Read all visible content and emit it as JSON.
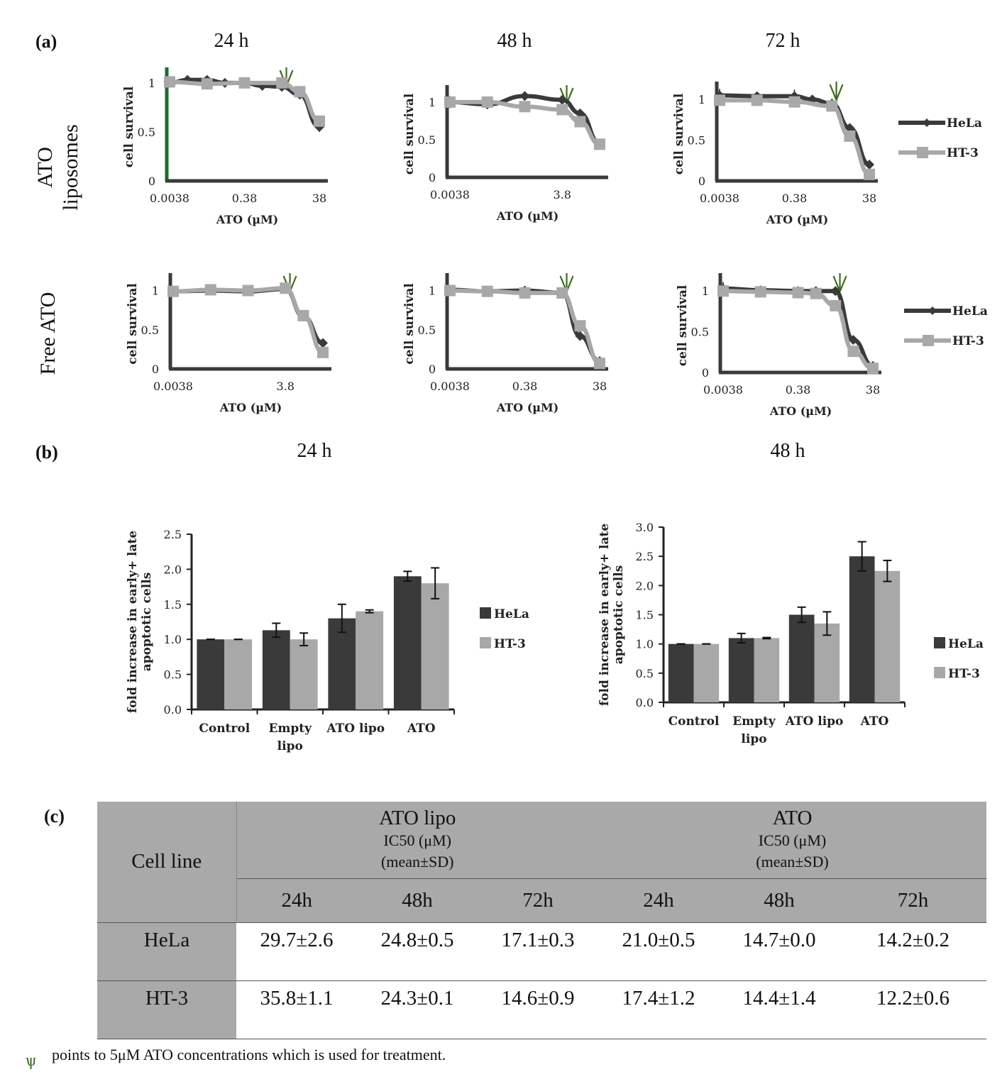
{
  "panels": {
    "a": "(a)",
    "b": "(b)",
    "c": "(c)"
  },
  "colors": {
    "hela": "#3a3a3a",
    "ht3": "#a8a8a8",
    "arrow": "#3d6b1e",
    "axis": "#3a3a3a",
    "table_gray": "#a9a9a9"
  },
  "panel_a": {
    "col_titles": [
      "24 h",
      "48 h",
      "72 h"
    ],
    "row_titles": {
      "liposomes_line1": "ATO",
      "liposomes_line2": "liposomes",
      "free": "Free ATO"
    },
    "legend": [
      "HeLa",
      "HT-3"
    ],
    "arrow_glyph": "ѱ"
  },
  "panel_b": {
    "col_titles": [
      "24 h",
      "48 h"
    ],
    "ylabel_line1": "fold increase in early+ late",
    "ylabel_line2": "apoptotic cells",
    "legend": [
      "HeLa",
      "HT-3"
    ]
  },
  "chart_data": [
    {
      "id": "lipo24",
      "type": "line",
      "title": "24 h",
      "xlabel": "ATO (µM)",
      "ylabel": "cell survival",
      "xscale": "log",
      "xticks": [
        0.0038,
        0.38,
        38
      ],
      "xtick_labels": [
        "0.0038",
        "0.38",
        "38"
      ],
      "xlim": [
        0.0038,
        38
      ],
      "yticks": [
        0,
        0.5,
        1
      ],
      "ytick_labels": [
        "0",
        "0.5",
        "1"
      ],
      "ylim": [
        0,
        1.1
      ],
      "arrow_x": 5,
      "y_axis_color": "#1f6b2e",
      "series": [
        {
          "name": "HeLa",
          "x": [
            0.0038,
            0.0114,
            0.038,
            0.114,
            0.38,
            1.14,
            3.8,
            11.4,
            38
          ],
          "y": [
            1.0,
            1.03,
            1.03,
            1.0,
            1.0,
            0.97,
            0.96,
            0.88,
            0.55
          ],
          "err": [
            0.02,
            0.03,
            0.02,
            0.02,
            0.02,
            0.04,
            0.04,
            0.03,
            0.05
          ]
        },
        {
          "name": "HT-3",
          "x": [
            0.0038,
            0.038,
            0.38,
            3.8,
            11.4,
            38
          ],
          "y": [
            1.01,
            0.99,
            1.0,
            1.0,
            0.91,
            0.61
          ],
          "err": [
            0.02,
            0.02,
            0.02,
            0.02,
            0.03,
            0.03
          ]
        }
      ]
    },
    {
      "id": "lipo48",
      "type": "line",
      "title": "48 h",
      "xlabel": "ATO (µM)",
      "ylabel": "cell survival",
      "xscale": "log",
      "xticks": [
        0.0038,
        3.8
      ],
      "xtick_labels": [
        "0.0038",
        "3.8"
      ],
      "xlim": [
        0.0038,
        38
      ],
      "yticks": [
        0,
        0.5,
        1
      ],
      "ytick_labels": [
        "0",
        "0.5",
        "1"
      ],
      "ylim": [
        0,
        1.15
      ],
      "arrow_x": 5,
      "y_axis_color": "#3a3a3a",
      "series": [
        {
          "name": "HeLa",
          "x": [
            0.0038,
            0.038,
            0.38,
            3.8,
            11.4,
            38
          ],
          "y": [
            1.0,
            0.97,
            1.08,
            1.03,
            0.85,
            0.45
          ],
          "err": [
            0.08,
            0.02,
            0.04,
            0.04,
            0.02,
            0.02
          ]
        },
        {
          "name": "HT-3",
          "x": [
            0.0038,
            0.038,
            0.38,
            3.8,
            11.4,
            38
          ],
          "y": [
            1.0,
            1.0,
            0.94,
            0.9,
            0.74,
            0.44
          ],
          "err": [
            0.02,
            0.02,
            0.02,
            0.02,
            0.03,
            0.02
          ]
        }
      ]
    },
    {
      "id": "lipo72",
      "type": "line",
      "title": "72 h",
      "xlabel": "ATO (µM)",
      "ylabel": "cell survival",
      "xscale": "log",
      "xticks": [
        0.0038,
        0.38,
        38
      ],
      "xtick_labels": [
        "0.0038",
        "0.38",
        "38"
      ],
      "xlim": [
        0.0038,
        38
      ],
      "yticks": [
        0,
        0.5,
        1
      ],
      "ytick_labels": [
        "0",
        "0.5",
        "1"
      ],
      "ylim": [
        0,
        1.15
      ],
      "arrow_x": 5,
      "y_axis_color": "#3a3a3a",
      "series": [
        {
          "name": "HeLa",
          "x": [
            0.0038,
            0.038,
            0.38,
            1.14,
            3.8,
            11.4,
            38
          ],
          "y": [
            1.05,
            1.04,
            1.04,
            1.0,
            0.95,
            0.65,
            0.2
          ],
          "err": [
            0.08,
            0.02,
            0.08,
            0.02,
            0.02,
            0.02,
            0.02
          ]
        },
        {
          "name": "HT-3",
          "x": [
            0.0038,
            0.038,
            0.38,
            3.8,
            11.4,
            38
          ],
          "y": [
            0.99,
            0.99,
            0.97,
            0.92,
            0.55,
            0.08
          ],
          "err": [
            0.02,
            0.02,
            0.03,
            0.02,
            0.03,
            0.02
          ]
        }
      ]
    },
    {
      "id": "free24",
      "type": "line",
      "title": "24 h",
      "xlabel": "ATO (µM)",
      "ylabel": "cell survival",
      "xscale": "log",
      "xticks": [
        0.0038,
        3.8
      ],
      "xtick_labels": [
        "0.0038",
        "3.8"
      ],
      "xlim": [
        0.0038,
        38
      ],
      "yticks": [
        0,
        0.5,
        1
      ],
      "ytick_labels": [
        "0",
        "0.5",
        "1"
      ],
      "ylim": [
        0,
        1.15
      ],
      "arrow_x": 5,
      "y_axis_color": "#3a3a3a",
      "series": [
        {
          "name": "HeLa",
          "x": [
            0.0038,
            0.038,
            0.38,
            3.8,
            11.4,
            38
          ],
          "y": [
            0.99,
            1.0,
            0.99,
            1.02,
            0.67,
            0.33
          ],
          "err": [
            0.02,
            0.03,
            0.02,
            0.02,
            0.03,
            0.04
          ]
        },
        {
          "name": "HT-3",
          "x": [
            0.0038,
            0.038,
            0.38,
            3.8,
            11.4,
            38
          ],
          "y": [
            0.99,
            1.01,
            1.0,
            1.03,
            0.68,
            0.21
          ],
          "err": [
            0.02,
            0.02,
            0.02,
            0.02,
            0.03,
            0.02
          ]
        }
      ]
    },
    {
      "id": "free48",
      "type": "line",
      "title": "48 h",
      "xlabel": "ATO (µM)",
      "ylabel": "cell survival",
      "xscale": "log",
      "xticks": [
        0.0038,
        0.38,
        38
      ],
      "xtick_labels": [
        "0.0038",
        "0.38",
        "38"
      ],
      "xlim": [
        0.0038,
        38
      ],
      "yticks": [
        0,
        0.5,
        1
      ],
      "ytick_labels": [
        "0",
        "0.5",
        "1"
      ],
      "ylim": [
        0,
        1.15
      ],
      "arrow_x": 5,
      "y_axis_color": "#3a3a3a",
      "series": [
        {
          "name": "HeLa",
          "x": [
            0.0038,
            0.038,
            0.38,
            3.8,
            11.4,
            38
          ],
          "y": [
            1.01,
            0.99,
            1.0,
            0.97,
            0.42,
            0.1
          ],
          "err": [
            0.03,
            0.02,
            0.02,
            0.02,
            0.03,
            0.02
          ]
        },
        {
          "name": "HT-3",
          "x": [
            0.0038,
            0.038,
            0.38,
            3.8,
            11.4,
            38
          ],
          "y": [
            1.0,
            0.99,
            0.97,
            0.97,
            0.55,
            0.07
          ],
          "err": [
            0.02,
            0.02,
            0.02,
            0.02,
            0.02,
            0.02
          ]
        }
      ]
    },
    {
      "id": "free72",
      "type": "line",
      "title": "72 h",
      "xlabel": "ATO (µM)",
      "ylabel": "cell survival",
      "xscale": "log",
      "xticks": [
        0.0038,
        0.38,
        38
      ],
      "xtick_labels": [
        "0.0038",
        "0.38",
        "38"
      ],
      "xlim": [
        0.0038,
        38
      ],
      "yticks": [
        0,
        0.5,
        1
      ],
      "ytick_labels": [
        "0",
        "0.5",
        "1"
      ],
      "ylim": [
        0,
        1.15
      ],
      "arrow_x": 5,
      "y_axis_color": "#3a3a3a",
      "series": [
        {
          "name": "HeLa",
          "x": [
            0.0038,
            0.038,
            0.38,
            1.14,
            3.8,
            11.4,
            38
          ],
          "y": [
            1.03,
            1.01,
            1.0,
            1.0,
            1.0,
            0.4,
            0.08
          ],
          "err": [
            0.08,
            0.02,
            0.02,
            0.02,
            0.02,
            0.03,
            0.02
          ]
        },
        {
          "name": "HT-3",
          "x": [
            0.0038,
            0.038,
            0.38,
            1.14,
            3.8,
            11.4,
            38
          ],
          "y": [
            1.0,
            0.99,
            0.98,
            0.97,
            0.82,
            0.26,
            0.05
          ],
          "err": [
            0.02,
            0.02,
            0.02,
            0.02,
            0.02,
            0.02,
            0.02
          ]
        }
      ]
    },
    {
      "id": "bar24",
      "type": "bar",
      "title": "24 h",
      "xlabel": "",
      "ylabel": "fold increase in early+ late apoptotic cells",
      "categories": [
        "Control",
        "Empty lipo",
        "ATO lipo",
        "ATO"
      ],
      "ylim": [
        0,
        2.5
      ],
      "yticks": [
        0,
        0.5,
        1,
        1.5,
        2,
        2.5
      ],
      "ytick_labels": [
        "0.0",
        "0.5",
        "1.0",
        "1.5",
        "2.0",
        "2.5"
      ],
      "series": [
        {
          "name": "HeLa",
          "values": [
            1.0,
            1.13,
            1.3,
            1.9
          ],
          "err": [
            0.0,
            0.1,
            0.2,
            0.07
          ]
        },
        {
          "name": "HT-3",
          "values": [
            1.0,
            1.0,
            1.4,
            1.8
          ],
          "err": [
            0.0,
            0.09,
            0.02,
            0.22
          ]
        }
      ]
    },
    {
      "id": "bar48",
      "type": "bar",
      "title": "48 h",
      "xlabel": "",
      "ylabel": "fold increase in early+ late apoptotic cells",
      "categories": [
        "Control",
        "Empty lipo",
        "ATO lipo",
        "ATO"
      ],
      "ylim": [
        0,
        3.0
      ],
      "yticks": [
        0,
        0.5,
        1,
        1.5,
        2,
        2.5,
        3
      ],
      "ytick_labels": [
        "0.0",
        "0.5",
        "1.0",
        "1.5",
        "2.0",
        "2.5",
        "3.0"
      ],
      "series": [
        {
          "name": "HeLa",
          "values": [
            1.0,
            1.1,
            1.5,
            2.5
          ],
          "err": [
            0.0,
            0.08,
            0.13,
            0.25
          ]
        },
        {
          "name": "HT-3",
          "values": [
            1.0,
            1.1,
            1.35,
            2.25
          ],
          "err": [
            0.0,
            0.01,
            0.2,
            0.18
          ]
        }
      ]
    }
  ],
  "table": {
    "cell_line_header": "Cell line",
    "groups": [
      {
        "name": "ATO lipo",
        "sub1": "IC50 (μM)",
        "sub2": "(mean±SD)"
      },
      {
        "name": "ATO",
        "sub1": "IC50 (μM)",
        "sub2": "(mean±SD)"
      }
    ],
    "time_headers": [
      "24h",
      "48h",
      "72h",
      "24h",
      "48h",
      "72h"
    ],
    "rows": [
      {
        "cell_line": "HeLa",
        "values": [
          "29.7±2.6",
          "24.8±0.5",
          "17.1±0.3",
          "21.0±0.5",
          "14.7±0.0",
          "14.2±0.2"
        ]
      },
      {
        "cell_line": "HT-3",
        "values": [
          "35.8±1.1",
          "24.3±0.1",
          "14.6±0.9",
          "17.4±1.2",
          "14.4±1.4",
          "12.2±0.6"
        ]
      }
    ]
  },
  "footnote": {
    "glyph": "ѱ",
    "text": "points to 5μM ATO concentrations which is used for treatment."
  }
}
